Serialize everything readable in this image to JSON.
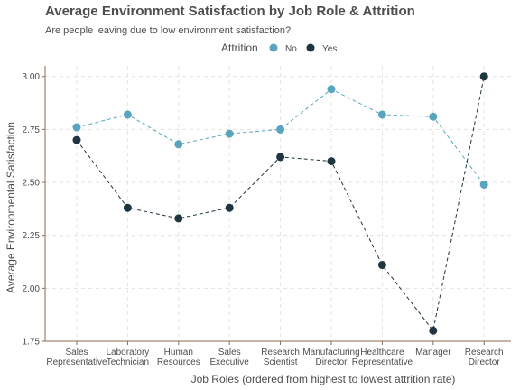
{
  "chart_data": {
    "type": "line",
    "title": "Average Environment Satisfaction by Job Role & Attrition",
    "subtitle": "Are people leaving due to low environment satisfaction?",
    "xlabel": "Job Roles (ordered from highest to lowest attrition rate)",
    "ylabel": "Average Environmental Satisfaction",
    "ylim": [
      1.75,
      3.05
    ],
    "yticks": [
      "1.75",
      "2.00",
      "2.25",
      "2.50",
      "2.75",
      "3.00"
    ],
    "categories": [
      "Sales\nRepresentative",
      "Laboratory\nTechnician",
      "Human\nResources",
      "Sales\nExecutive",
      "Research\nScientist",
      "Manufacturing\nDirector",
      "Healthcare\nRepresentative",
      "Manager",
      "Research\nDirector"
    ],
    "legend_title": "Attrition",
    "legend_position": "top",
    "grid": true,
    "series": [
      {
        "name": "No",
        "color": "#5aa5be",
        "values": [
          2.76,
          2.82,
          2.68,
          2.73,
          2.75,
          2.94,
          2.82,
          2.81,
          2.49
        ]
      },
      {
        "name": "Yes",
        "color": "#1f3540",
        "values": [
          2.7,
          2.38,
          2.33,
          2.38,
          2.62,
          2.6,
          2.11,
          1.8,
          3.0
        ]
      }
    ]
  }
}
